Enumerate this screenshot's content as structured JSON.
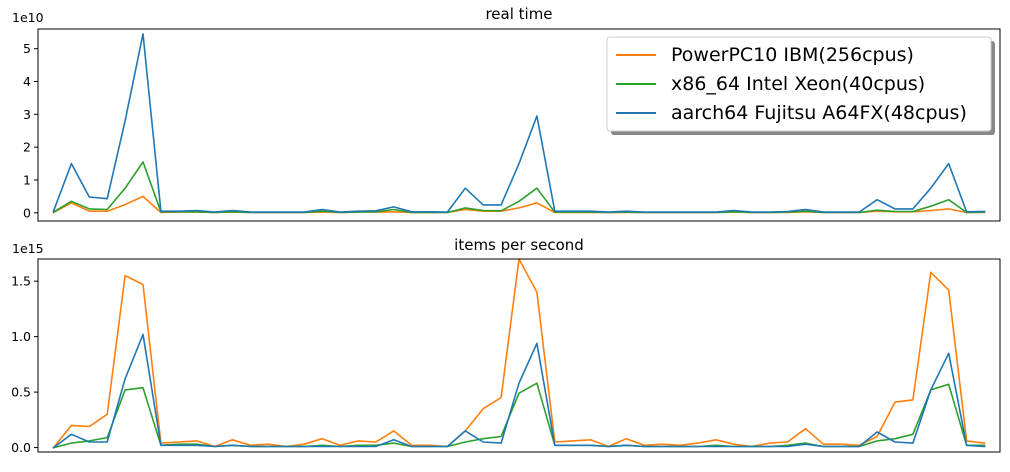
{
  "chart_data": [
    {
      "type": "line",
      "title": "real time",
      "y_multiplier": "1e10",
      "ylim": [
        -0.25,
        5.6
      ],
      "yticks": [
        0,
        1,
        2,
        3,
        4,
        5
      ],
      "ytick_labels": [
        "0",
        "1",
        "2",
        "3",
        "4",
        "5"
      ],
      "xlim": [
        0,
        62
      ],
      "x_ticks_visible": false,
      "legend": {
        "placement": "upper-right",
        "font": "large"
      },
      "series": [
        {
          "name": "PowerPC10 IBM(256cpus)",
          "color": "#ff7f0e",
          "values": [
            0.01,
            0.3,
            0.05,
            0.05,
            0.25,
            0.5,
            0.01,
            0.02,
            0.02,
            0.01,
            0.02,
            0.01,
            0.01,
            0.01,
            0.01,
            0.02,
            0.01,
            0.02,
            0.02,
            0.03,
            0.01,
            0.01,
            0.01,
            0.1,
            0.05,
            0.05,
            0.15,
            0.3,
            0.01,
            0.01,
            0.01,
            0.01,
            0.01,
            0.01,
            0.01,
            0.01,
            0.01,
            0.01,
            0.02,
            0.01,
            0.01,
            0.01,
            0.03,
            0.01,
            0.01,
            0.01,
            0.05,
            0.03,
            0.03,
            0.07,
            0.12,
            0.01,
            0.01
          ]
        },
        {
          "name": "x86_64 Intel Xeon(40cpus)",
          "color": "#2ca02c",
          "values": [
            0.02,
            0.35,
            0.12,
            0.1,
            0.75,
            1.55,
            0.03,
            0.03,
            0.03,
            0.01,
            0.03,
            0.01,
            0.01,
            0.01,
            0.01,
            0.05,
            0.01,
            0.02,
            0.03,
            0.1,
            0.01,
            0.01,
            0.01,
            0.15,
            0.07,
            0.06,
            0.35,
            0.75,
            0.02,
            0.02,
            0.02,
            0.01,
            0.02,
            0.01,
            0.01,
            0.01,
            0.01,
            0.01,
            0.03,
            0.01,
            0.01,
            0.02,
            0.05,
            0.01,
            0.01,
            0.01,
            0.08,
            0.04,
            0.04,
            0.2,
            0.4,
            0.01,
            0.02
          ]
        },
        {
          "name": "aarch64 Fujitsu A64FX(48cpus)",
          "color": "#1f77b4",
          "values": [
            0.05,
            1.5,
            0.48,
            0.43,
            2.8,
            5.45,
            0.05,
            0.05,
            0.07,
            0.02,
            0.07,
            0.02,
            0.02,
            0.02,
            0.02,
            0.1,
            0.02,
            0.05,
            0.06,
            0.18,
            0.03,
            0.03,
            0.02,
            0.75,
            0.24,
            0.24,
            1.5,
            2.95,
            0.05,
            0.05,
            0.05,
            0.02,
            0.05,
            0.02,
            0.02,
            0.02,
            0.02,
            0.02,
            0.07,
            0.02,
            0.02,
            0.04,
            0.1,
            0.02,
            0.02,
            0.02,
            0.4,
            0.12,
            0.12,
            0.75,
            1.5,
            0.03,
            0.04
          ]
        }
      ]
    },
    {
      "type": "line",
      "title": "items per second",
      "y_multiplier": "1e15",
      "ylim": [
        -0.04,
        1.7
      ],
      "yticks": [
        0,
        0.5,
        1.0,
        1.5
      ],
      "ytick_labels": [
        "0.0",
        "0.5",
        "1.0",
        "1.5"
      ],
      "xlim": [
        0,
        62
      ],
      "x_ticks_visible": false,
      "series": [
        {
          "name": "PowerPC10 IBM(256cpus)",
          "color": "#ff7f0e",
          "values": [
            0.0,
            0.2,
            0.19,
            0.3,
            1.55,
            1.47,
            0.04,
            0.05,
            0.06,
            0.01,
            0.07,
            0.02,
            0.03,
            0.01,
            0.03,
            0.08,
            0.02,
            0.06,
            0.05,
            0.15,
            0.02,
            0.02,
            0.01,
            0.15,
            0.35,
            0.45,
            1.7,
            1.4,
            0.05,
            0.06,
            0.07,
            0.01,
            0.08,
            0.02,
            0.03,
            0.02,
            0.04,
            0.07,
            0.03,
            0.01,
            0.04,
            0.05,
            0.17,
            0.03,
            0.03,
            0.02,
            0.1,
            0.41,
            0.43,
            1.58,
            1.42,
            0.06,
            0.04
          ]
        },
        {
          "name": "x86_64 Intel Xeon(40cpus)",
          "color": "#2ca02c",
          "values": [
            0.0,
            0.04,
            0.06,
            0.09,
            0.52,
            0.54,
            0.02,
            0.03,
            0.03,
            0.01,
            0.02,
            0.01,
            0.01,
            0.01,
            0.01,
            0.02,
            0.01,
            0.02,
            0.02,
            0.04,
            0.01,
            0.01,
            0.01,
            0.05,
            0.08,
            0.1,
            0.49,
            0.58,
            0.02,
            0.02,
            0.02,
            0.01,
            0.02,
            0.01,
            0.01,
            0.01,
            0.01,
            0.02,
            0.01,
            0.01,
            0.01,
            0.02,
            0.04,
            0.01,
            0.01,
            0.01,
            0.06,
            0.08,
            0.12,
            0.52,
            0.57,
            0.02,
            0.02
          ]
        },
        {
          "name": "aarch64 Fujitsu A64FX(48cpus)",
          "color": "#1f77b4",
          "values": [
            0.0,
            0.12,
            0.05,
            0.05,
            0.62,
            1.02,
            0.02,
            0.02,
            0.02,
            0.01,
            0.02,
            0.01,
            0.01,
            0.01,
            0.01,
            0.01,
            0.01,
            0.01,
            0.01,
            0.07,
            0.01,
            0.01,
            0.01,
            0.15,
            0.05,
            0.04,
            0.58,
            0.94,
            0.02,
            0.02,
            0.02,
            0.01,
            0.02,
            0.01,
            0.01,
            0.01,
            0.01,
            0.01,
            0.01,
            0.01,
            0.01,
            0.01,
            0.03,
            0.01,
            0.01,
            0.01,
            0.14,
            0.05,
            0.04,
            0.52,
            0.85,
            0.02,
            0.01
          ]
        }
      ]
    }
  ]
}
